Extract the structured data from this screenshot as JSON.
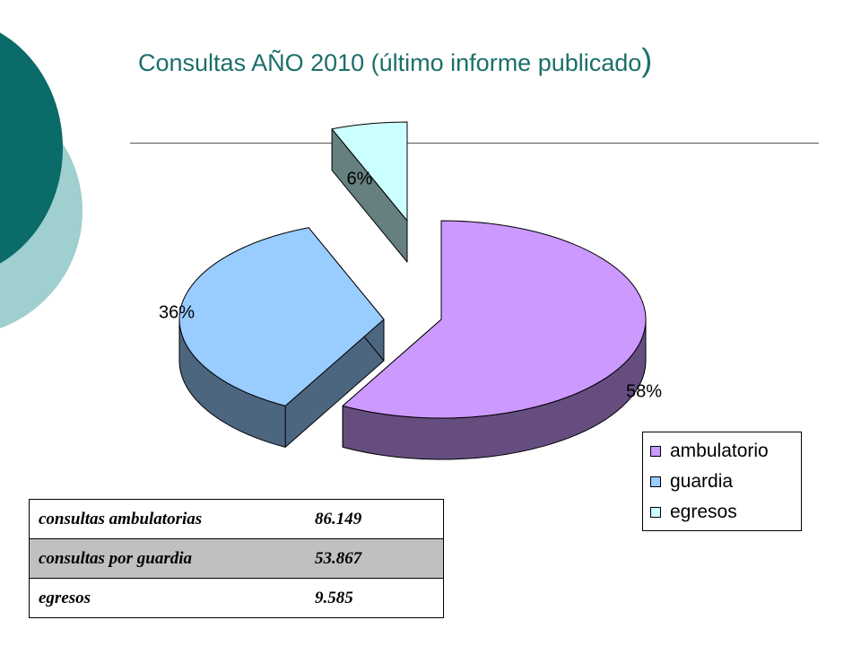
{
  "slide": {
    "title_text": "Consultas AÑO 2010 (último informe publicado",
    "title_close": ")"
  },
  "colors": {
    "accent_dark": "#0a6b68",
    "accent_light": "#9fcfcf",
    "title": "#1b6f6a"
  },
  "chart_data": {
    "type": "pie",
    "categories": [
      "ambulatorio",
      "guardia",
      "egresos"
    ],
    "values": [
      58,
      36,
      6
    ],
    "data_labels": [
      "58%",
      "36%",
      "6%"
    ],
    "colors": [
      "#cc99ff",
      "#99ccff",
      "#ccffff"
    ],
    "exploded": true,
    "three_d": true,
    "legend_position": "bottom-right"
  },
  "table": {
    "rows": [
      {
        "label": "consultas ambulatorias",
        "value": "86.149"
      },
      {
        "label": "consultas por guardia",
        "value": "53.867"
      },
      {
        "label": "egresos",
        "value": "9.585"
      }
    ]
  }
}
